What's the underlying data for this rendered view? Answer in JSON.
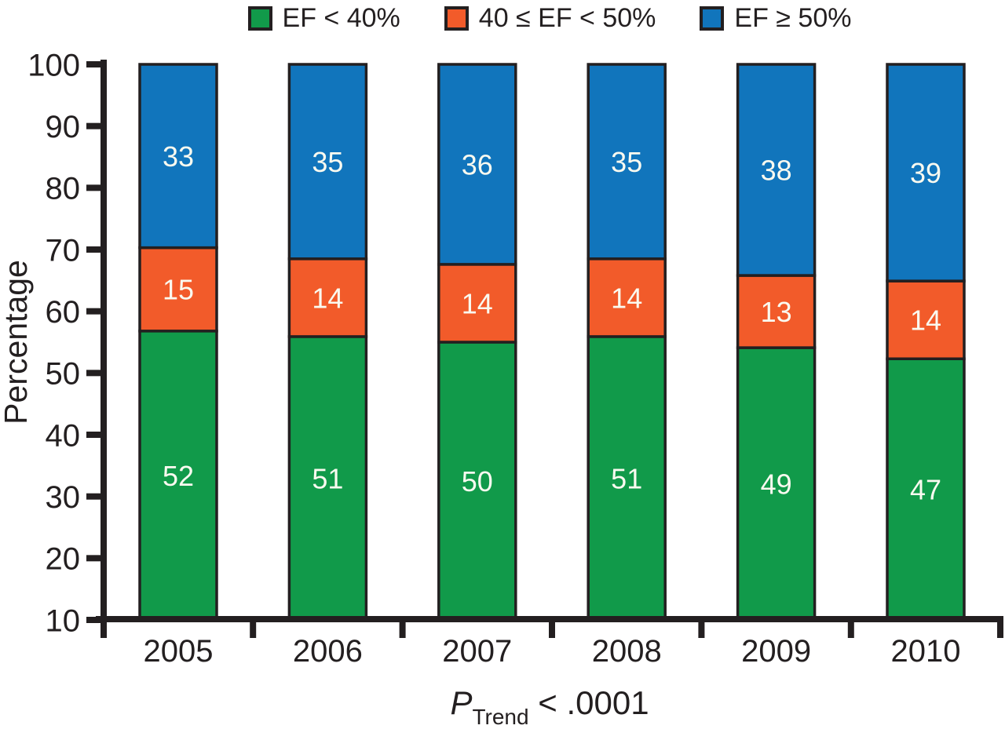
{
  "figure": {
    "background": "#FFFFFF",
    "text_color": "#231F20"
  },
  "legend": {
    "items": [
      {
        "name": "ef-lt-40",
        "label": "EF < 40%",
        "color": "#119A4A"
      },
      {
        "name": "ef-40-50",
        "label": "40 ≤ EF < 50%",
        "color": "#F25B2A"
      },
      {
        "name": "ef-ge-50",
        "label": "EF ≥ 50%",
        "color": "#1175BC"
      }
    ]
  },
  "chart_data": {
    "type": "bar",
    "stacked": true,
    "percent_stacked_on_truncated_axis": true,
    "categories": [
      "2005",
      "2006",
      "2007",
      "2008",
      "2009",
      "2010"
    ],
    "series": [
      {
        "name": "EF < 40%",
        "color": "#119A4A",
        "values": [
          52,
          51,
          50,
          51,
          49,
          47
        ]
      },
      {
        "name": "40 ≤ EF < 50%",
        "color": "#F25B2A",
        "values": [
          15,
          14,
          14,
          14,
          13,
          14
        ]
      },
      {
        "name": "EF ≥ 50%",
        "color": "#1175BC",
        "values": [
          33,
          35,
          36,
          35,
          38,
          39
        ]
      }
    ],
    "title": "",
    "xlabel": "",
    "ylabel": "Percentage",
    "ylim": [
      10,
      100
    ],
    "yticks": [
      10,
      20,
      30,
      40,
      50,
      60,
      70,
      80,
      90,
      100
    ],
    "grid": false,
    "legend_position": "top",
    "bar_outline_color": "#231F20",
    "bar_label_color": "#FAFAF0",
    "annotation": {
      "p_symbol": "P",
      "p_subscript": "Trend",
      "p_comparison": " < .0001"
    }
  }
}
